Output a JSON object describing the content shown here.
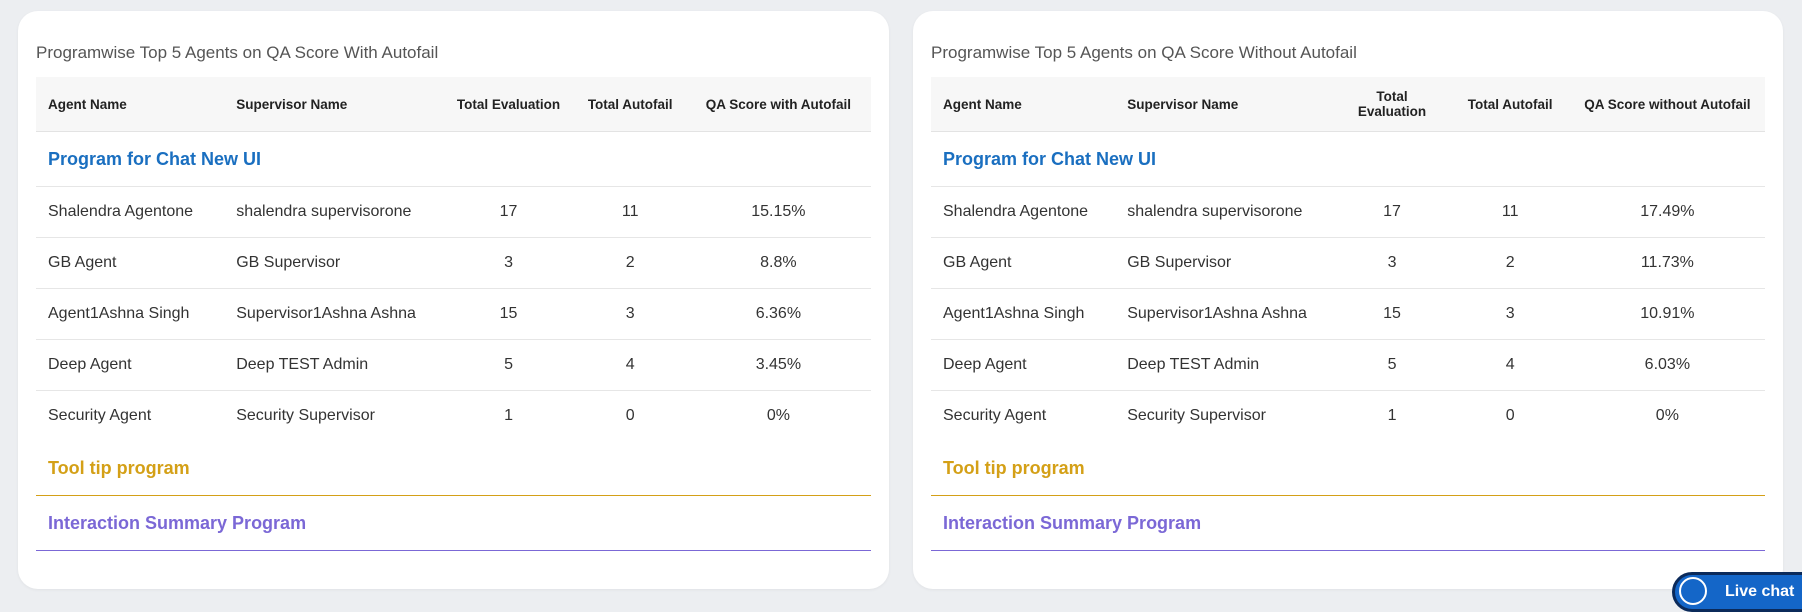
{
  "panels": [
    {
      "title": "Programwise Top 5 Agents on QA Score With Autofail",
      "headers": [
        "Agent Name",
        "Supervisor Name",
        "Total Evaluation",
        "Total Autofail",
        "QA Score with Autofail"
      ],
      "programs": [
        {
          "name": "Program for Chat New UI",
          "rows": [
            [
              "Shalendra Agentone",
              "shalendra supervisorone",
              "17",
              "11",
              "15.15%"
            ],
            [
              "GB Agent",
              "GB Supervisor",
              "3",
              "2",
              "8.8%"
            ],
            [
              "Agent1Ashna Singh",
              "Supervisor1Ashna Ashna",
              "15",
              "3",
              "6.36%"
            ],
            [
              "Deep Agent",
              "Deep TEST Admin",
              "5",
              "4",
              "3.45%"
            ],
            [
              "Security Agent",
              "Security Supervisor",
              "1",
              "0",
              "0%"
            ]
          ]
        },
        {
          "name": "Tool tip program",
          "rows": []
        },
        {
          "name": "Interaction Summary Program",
          "rows": []
        }
      ]
    },
    {
      "title": "Programwise Top 5 Agents on QA Score Without Autofail",
      "headers": [
        "Agent Name",
        "Supervisor Name",
        "Total Evaluation",
        "Total Autofail",
        "QA Score without Autofail"
      ],
      "programs": [
        {
          "name": "Program for Chat New UI",
          "rows": [
            [
              "Shalendra Agentone",
              "shalendra supervisorone",
              "17",
              "11",
              "17.49%"
            ],
            [
              "GB Agent",
              "GB Supervisor",
              "3",
              "2",
              "11.73%"
            ],
            [
              "Agent1Ashna Singh",
              "Supervisor1Ashna Ashna",
              "15",
              "3",
              "10.91%"
            ],
            [
              "Deep Agent",
              "Deep TEST Admin",
              "5",
              "4",
              "6.03%"
            ],
            [
              "Security Agent",
              "Security Supervisor",
              "1",
              "0",
              "0%"
            ]
          ]
        },
        {
          "name": "Tool tip program",
          "rows": []
        },
        {
          "name": "Interaction Summary Program",
          "rows": []
        }
      ]
    }
  ],
  "live_chat": "Live chat"
}
